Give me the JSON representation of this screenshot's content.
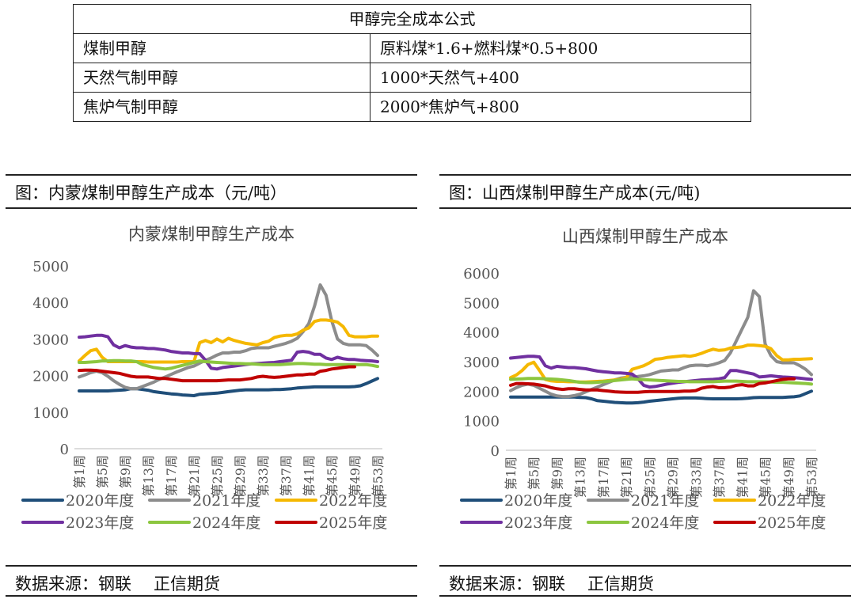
{
  "formula_table": {
    "title": "甲醇完全成本公式",
    "rows": [
      {
        "type": "煤制甲醇",
        "formula": "原料煤*1.6+燃料煤*0.5+800"
      },
      {
        "type": "天然气制甲醇",
        "formula": "1000*天然气+400"
      },
      {
        "type": "焦炉气制甲醇",
        "formula": "2000*焦炉气+800"
      }
    ]
  },
  "panels": [
    {
      "caption": "图：内蒙煤制甲醇生产成本（元/吨）",
      "source_label": "数据来源：钢联",
      "source_org": "正信期货"
    },
    {
      "caption": "图：山西煤制甲醇生产成本(元/吨)",
      "source_label": "数据来源：钢联",
      "source_org": "正信期货"
    }
  ],
  "series_colors": {
    "2020年度": "#1f4e79",
    "2021年度": "#8c8c8c",
    "2022年度": "#f5b800",
    "2023年度": "#7030a0",
    "2024年度": "#8cc63f",
    "2025年度": "#c00000"
  },
  "chart_data": [
    {
      "type": "line",
      "title": "内蒙煤制甲醇生产成本",
      "xlabel": "",
      "ylabel": "",
      "ylim": [
        0,
        5000
      ],
      "yticks": [
        0,
        1000,
        2000,
        3000,
        4000,
        5000
      ],
      "grid": false,
      "legend": "bottom",
      "x_tick_labels": [
        "第1周",
        "第5周",
        "第9周",
        "第13周",
        "第17周",
        "第21周",
        "第25周",
        "第29周",
        "第33周",
        "第37周",
        "第41周",
        "第45周",
        "第49周",
        "第53周"
      ],
      "x_count": 53,
      "series": [
        {
          "name": "2020年度",
          "values": [
            1580,
            1580,
            1580,
            1580,
            1580,
            1580,
            1590,
            1600,
            1610,
            1640,
            1640,
            1620,
            1600,
            1560,
            1540,
            1520,
            1500,
            1490,
            1470,
            1460,
            1450,
            1490,
            1500,
            1510,
            1520,
            1540,
            1560,
            1580,
            1600,
            1610,
            1610,
            1610,
            1610,
            1610,
            1620,
            1620,
            1630,
            1640,
            1660,
            1670,
            1680,
            1690,
            1690,
            1690,
            1690,
            1690,
            1690,
            1690,
            1700,
            1720,
            1780,
            1850,
            1920
          ]
        },
        {
          "name": "2021年度",
          "values": [
            1960,
            2020,
            2080,
            2120,
            2080,
            1980,
            1860,
            1760,
            1680,
            1640,
            1640,
            1700,
            1760,
            1820,
            1900,
            1960,
            2030,
            2100,
            2160,
            2220,
            2260,
            2340,
            2420,
            2480,
            2560,
            2620,
            2620,
            2640,
            2640,
            2680,
            2740,
            2760,
            2760,
            2760,
            2800,
            2840,
            2880,
            2940,
            3020,
            3200,
            3420,
            3900,
            4480,
            4200,
            3500,
            3000,
            2880,
            2840,
            2840,
            2840,
            2820,
            2700,
            2550
          ]
        },
        {
          "name": "2022年度",
          "values": [
            2400,
            2550,
            2680,
            2720,
            2500,
            2380,
            2380,
            2380,
            2380,
            2380,
            2380,
            2380,
            2370,
            2370,
            2370,
            2370,
            2370,
            2370,
            2380,
            2380,
            2380,
            2900,
            2960,
            2900,
            3000,
            2920,
            3020,
            2960,
            2920,
            2880,
            2860,
            2840,
            2900,
            2940,
            3040,
            3080,
            3100,
            3100,
            3140,
            3240,
            3300,
            3480,
            3520,
            3520,
            3500,
            3460,
            3340,
            3100,
            3060,
            3060,
            3060,
            3080,
            3080
          ]
        },
        {
          "name": "2023年度",
          "values": [
            3050,
            3060,
            3080,
            3100,
            3100,
            3060,
            2840,
            2760,
            2820,
            2780,
            2760,
            2760,
            2740,
            2740,
            2720,
            2700,
            2660,
            2640,
            2620,
            2620,
            2600,
            2600,
            2420,
            2200,
            2180,
            2220,
            2240,
            2260,
            2280,
            2300,
            2320,
            2330,
            2340,
            2350,
            2360,
            2380,
            2400,
            2420,
            2640,
            2660,
            2640,
            2580,
            2580,
            2480,
            2440,
            2500,
            2460,
            2440,
            2440,
            2420,
            2410,
            2400,
            2380
          ]
        },
        {
          "name": "2024年度",
          "values": [
            2360,
            2360,
            2370,
            2380,
            2400,
            2400,
            2410,
            2410,
            2400,
            2400,
            2380,
            2300,
            2260,
            2220,
            2200,
            2180,
            2200,
            2240,
            2280,
            2320,
            2360,
            2400,
            2380,
            2370,
            2360,
            2350,
            2340,
            2330,
            2330,
            2320,
            2320,
            2310,
            2300,
            2300,
            2300,
            2300,
            2310,
            2320,
            2330,
            2330,
            2320,
            2310,
            2310,
            2300,
            2300,
            2300,
            2300,
            2300,
            2300,
            2300,
            2300,
            2280,
            2250
          ]
        },
        {
          "name": "2025年度",
          "values": [
            2140,
            2150,
            2150,
            2140,
            2120,
            2100,
            2080,
            2060,
            2020,
            1980,
            1960,
            1960,
            1960,
            1940,
            1920,
            1920,
            1900,
            1880,
            1860,
            1860,
            1860,
            1860,
            1860,
            1860,
            1860,
            1870,
            1880,
            1880,
            1880,
            1900,
            1920,
            1960,
            1980,
            1960,
            1950,
            1960,
            1980,
            2000,
            2020,
            2020,
            2040,
            2040,
            2120,
            2140,
            2180,
            2200,
            2220,
            2240,
            2240,
            null,
            null,
            null,
            null
          ]
        }
      ]
    },
    {
      "type": "line",
      "title": "山西煤制甲醇生产成本",
      "xlabel": "",
      "ylabel": "",
      "ylim": [
        0,
        6000
      ],
      "yticks": [
        0,
        1000,
        2000,
        3000,
        4000,
        5000,
        6000
      ],
      "grid": false,
      "legend": "bottom",
      "x_tick_labels": [
        "第1周",
        "第5周",
        "第9周",
        "第13周",
        "第17周",
        "第21周",
        "第25周",
        "第29周",
        "第33周",
        "第37周",
        "第41周",
        "第45周",
        "第49周",
        "第53周"
      ],
      "x_count": 53,
      "series": [
        {
          "name": "2020年度",
          "values": [
            1800,
            1800,
            1800,
            1800,
            1800,
            1800,
            1800,
            1800,
            1800,
            1800,
            1800,
            1800,
            1790,
            1780,
            1740,
            1680,
            1660,
            1640,
            1620,
            1610,
            1600,
            1600,
            1610,
            1630,
            1660,
            1680,
            1700,
            1720,
            1740,
            1760,
            1770,
            1770,
            1770,
            1760,
            1750,
            1740,
            1740,
            1740,
            1740,
            1740,
            1750,
            1760,
            1780,
            1790,
            1790,
            1790,
            1790,
            1790,
            1800,
            1810,
            1840,
            1920,
            2000
          ]
        },
        {
          "name": "2021年度",
          "values": [
            2020,
            2120,
            2200,
            2240,
            2200,
            2100,
            2000,
            1900,
            1840,
            1820,
            1820,
            1850,
            1900,
            1980,
            2060,
            2140,
            2220,
            2300,
            2380,
            2440,
            2470,
            2490,
            2500,
            2520,
            2560,
            2620,
            2680,
            2700,
            2720,
            2720,
            2800,
            2860,
            2880,
            2880,
            2860,
            2900,
            2960,
            3040,
            3300,
            3700,
            4100,
            4500,
            5400,
            5200,
            3600,
            3200,
            3000,
            2960,
            2960,
            2960,
            2860,
            2740,
            2560
          ]
        },
        {
          "name": "2022年度",
          "values": [
            2460,
            2550,
            2700,
            2900,
            2980,
            2700,
            2400,
            2350,
            2330,
            2330,
            2320,
            2320,
            2310,
            2310,
            2320,
            2330,
            2340,
            2360,
            2380,
            2400,
            2460,
            2740,
            2800,
            2860,
            2960,
            3080,
            3100,
            3140,
            3160,
            3180,
            3200,
            3180,
            3220,
            3280,
            3360,
            3420,
            3380,
            3400,
            3460,
            3480,
            3500,
            3560,
            3560,
            3540,
            3520,
            3440,
            3200,
            3060,
            3060,
            3080,
            3080,
            3090,
            3100
          ]
        },
        {
          "name": "2023年度",
          "values": [
            3120,
            3140,
            3160,
            3180,
            3180,
            3160,
            2860,
            2780,
            2840,
            2820,
            2800,
            2800,
            2780,
            2760,
            2720,
            2680,
            2660,
            2640,
            2620,
            2620,
            2600,
            2580,
            2420,
            2200,
            2140,
            2160,
            2200,
            2240,
            2270,
            2300,
            2320,
            2340,
            2360,
            2380,
            2390,
            2400,
            2420,
            2460,
            2700,
            2700,
            2660,
            2620,
            2580,
            2480,
            2500,
            2520,
            2500,
            2480,
            2470,
            2460,
            2440,
            2420,
            2400
          ]
        },
        {
          "name": "2024年度",
          "values": [
            2400,
            2410,
            2420,
            2430,
            2430,
            2430,
            2420,
            2410,
            2400,
            2380,
            2360,
            2330,
            2300,
            2290,
            2290,
            2300,
            2320,
            2340,
            2360,
            2380,
            2400,
            2420,
            2400,
            2390,
            2380,
            2370,
            2360,
            2350,
            2340,
            2330,
            2330,
            2320,
            2320,
            2320,
            2320,
            2320,
            2330,
            2340,
            2340,
            2340,
            2330,
            2320,
            2320,
            2320,
            2320,
            2310,
            2300,
            2300,
            2290,
            2280,
            2270,
            2260,
            2240
          ]
        },
        {
          "name": "2025年度",
          "values": [
            2200,
            2260,
            2260,
            2250,
            2240,
            2210,
            2180,
            2120,
            2080,
            2060,
            2080,
            2080,
            2060,
            2040,
            2040,
            2040,
            2020,
            2000,
            1980,
            1970,
            1960,
            1960,
            1960,
            1980,
            1990,
            1990,
            1990,
            1990,
            1990,
            1990,
            2000,
            2000,
            2020,
            2100,
            2140,
            2160,
            2120,
            2120,
            2140,
            2200,
            2220,
            2180,
            2180,
            2260,
            2280,
            2320,
            2360,
            2400,
            2420,
            2420,
            null,
            null,
            null
          ]
        }
      ]
    }
  ]
}
